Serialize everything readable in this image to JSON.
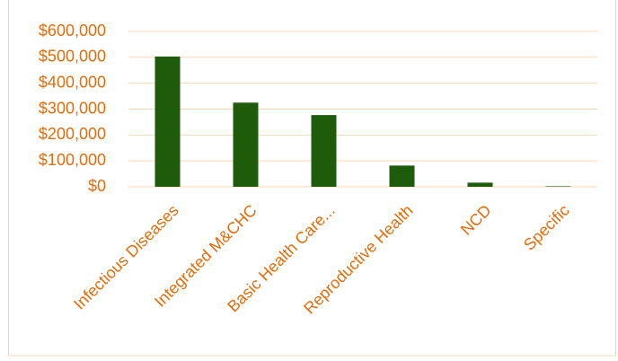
{
  "chart_data": {
    "type": "bar",
    "categories": [
      "Infectious Diseases",
      "Integrated M&CHC",
      "Basic Health Care...",
      "Reproductive Health",
      "NCD",
      "Specific"
    ],
    "values": [
      503000,
      325000,
      277000,
      82000,
      16000,
      2000
    ],
    "color": "#1e5b0b",
    "ylim": [
      0,
      600000
    ],
    "yticks": [
      {
        "value": 0,
        "label": "$0"
      },
      {
        "value": 100000,
        "label": "$100,000"
      },
      {
        "value": 200000,
        "label": "$200,000"
      },
      {
        "value": 300000,
        "label": "$300,000"
      },
      {
        "value": 400000,
        "label": "$400,000"
      },
      {
        "value": 500000,
        "label": "$500,000"
      },
      {
        "value": 600000,
        "label": "$600,000"
      }
    ],
    "grid": true
  }
}
